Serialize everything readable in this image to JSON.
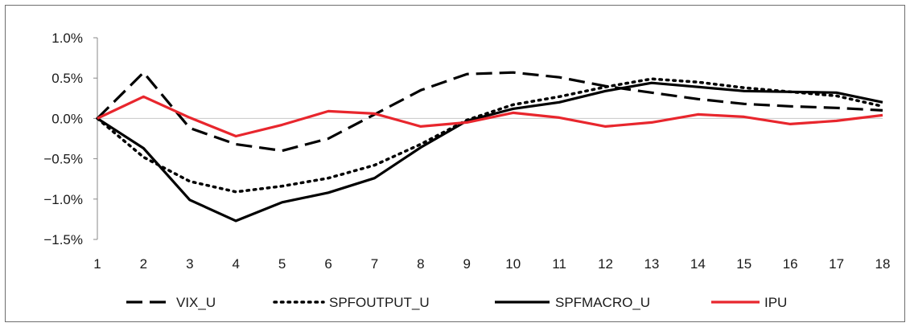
{
  "chart_data": {
    "type": "line",
    "x": [
      1,
      2,
      3,
      4,
      5,
      6,
      7,
      8,
      9,
      10,
      11,
      12,
      13,
      14,
      15,
      16,
      17,
      18
    ],
    "ylim": [
      -1.5,
      1.0
    ],
    "yticks": [
      1.0,
      0.5,
      0.0,
      -0.5,
      -1.0,
      -1.5
    ],
    "ytick_labels": [
      "1.0%",
      "0.5%",
      "0.0%",
      "−0.5%",
      "−1.0%",
      "−1.5%"
    ],
    "xtick_labels": [
      "1",
      "2",
      "3",
      "4",
      "5",
      "6",
      "7",
      "8",
      "9",
      "10",
      "11",
      "12",
      "13",
      "14",
      "15",
      "16",
      "17",
      "18"
    ],
    "grid": false,
    "legend_position": "bottom",
    "series": [
      {
        "name": "VIX_U",
        "style": "dashed",
        "color": "#000000",
        "values": [
          0.0,
          0.57,
          -0.12,
          -0.32,
          -0.4,
          -0.25,
          0.05,
          0.35,
          0.55,
          0.57,
          0.51,
          0.4,
          0.32,
          0.24,
          0.18,
          0.15,
          0.13,
          0.1
        ]
      },
      {
        "name": "SPFOUTPUT_U",
        "style": "dotted",
        "color": "#000000",
        "values": [
          0.0,
          -0.48,
          -0.78,
          -0.91,
          -0.84,
          -0.74,
          -0.58,
          -0.32,
          -0.02,
          0.17,
          0.27,
          0.39,
          0.49,
          0.45,
          0.38,
          0.33,
          0.28,
          0.15
        ]
      },
      {
        "name": "SPFMACRO_U",
        "style": "solid",
        "color": "#000000",
        "values": [
          0.0,
          -0.37,
          -1.01,
          -1.27,
          -1.04,
          -0.92,
          -0.74,
          -0.36,
          -0.03,
          0.12,
          0.2,
          0.34,
          0.44,
          0.39,
          0.34,
          0.33,
          0.32,
          0.2
        ]
      },
      {
        "name": "IPU",
        "style": "solid",
        "color": "#e8262d",
        "values": [
          0.0,
          0.27,
          0.01,
          -0.22,
          -0.08,
          0.09,
          0.06,
          -0.1,
          -0.05,
          0.07,
          0.01,
          -0.1,
          -0.05,
          0.05,
          0.02,
          -0.07,
          -0.03,
          0.04
        ]
      }
    ]
  }
}
